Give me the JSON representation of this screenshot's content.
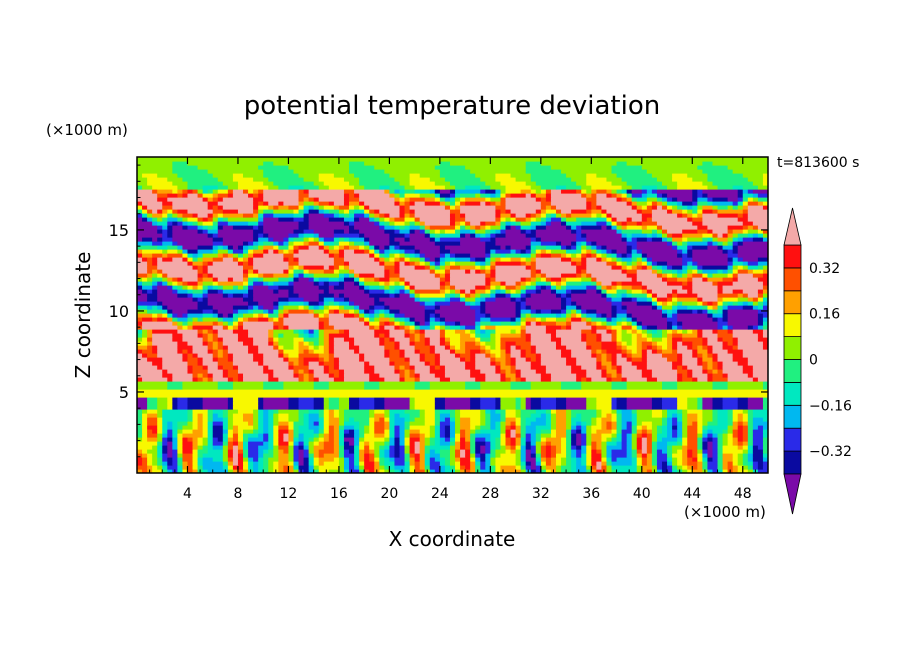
{
  "chart_data": {
    "type": "heatmap",
    "title": "potential temperature deviation",
    "xlabel": "X coordinate",
    "ylabel": "Z coordinate",
    "x_unit_label": "(×1000 m)",
    "y_unit_label": "(×1000 m)",
    "time_label": "t=813600 s",
    "xlim": [
      0,
      50
    ],
    "ylim": [
      0,
      19.5
    ],
    "x_ticks": [
      4,
      8,
      12,
      16,
      20,
      24,
      28,
      32,
      36,
      40,
      44,
      48
    ],
    "x_tick_labels": [
      "4",
      "8",
      "12",
      "16",
      "20",
      "24",
      "28",
      "32",
      "36",
      "40",
      "44",
      "48"
    ],
    "y_ticks": [
      5,
      10,
      15
    ],
    "y_tick_labels": [
      "5",
      "10",
      "15"
    ],
    "colorbar": {
      "levels": [
        -0.4,
        -0.32,
        -0.24,
        -0.16,
        -0.08,
        0,
        0.08,
        0.16,
        0.24,
        0.32,
        0.4
      ],
      "tick_values": [
        -0.32,
        -0.16,
        0,
        0.16,
        0.32
      ],
      "tick_labels": [
        "−0.32",
        "−0.16",
        "0",
        "0.16",
        "0.32"
      ],
      "under_color": "#7a0aa8",
      "over_color": "#f4a9a8",
      "colors": [
        "#0a0aa0",
        "#2a2ae8",
        "#00b8f0",
        "#00e8c0",
        "#20f080",
        "#90f000",
        "#f8f800",
        "#ffa000",
        "#ff5000",
        "#ff1010"
      ]
    },
    "field_bands": [
      {
        "z_range": [
          0,
          4
        ],
        "description": "alternating vertical plumes (near-zero with positive/negative cells)"
      },
      {
        "z_range": [
          4,
          4.6
        ],
        "description": "strong negative strip"
      },
      {
        "z_range": [
          4.6,
          5.8
        ],
        "description": "yellow/green positive strip"
      },
      {
        "z_range": [
          5.8,
          9
        ],
        "description": "strong positive layer with strong negative blobs above"
      },
      {
        "z_range": [
          9,
          17.5
        ],
        "description": "alternating strong positive and negative layers"
      },
      {
        "z_range": [
          17.5,
          19.5
        ],
        "description": "near-zero green"
      }
    ]
  }
}
